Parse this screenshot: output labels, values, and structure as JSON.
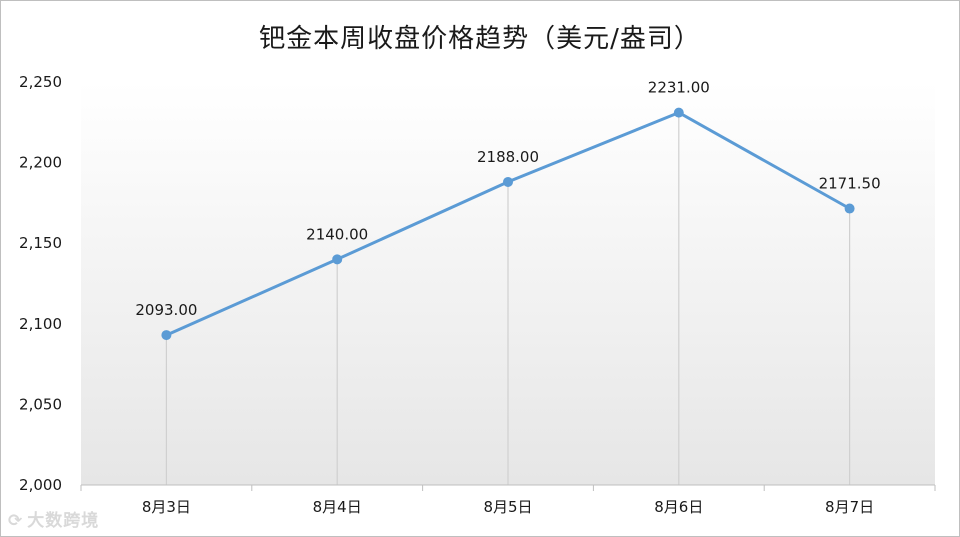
{
  "chart_data": {
    "type": "line",
    "title": "钯金本周收盘价格趋势（美元/盎司）",
    "categories": [
      "8月3日",
      "8月4日",
      "8月5日",
      "8月6日",
      "8月7日"
    ],
    "series": [
      {
        "values": [
          2093.0,
          2140.0,
          2188.0,
          2231.0,
          2171.5
        ],
        "color": "#5b9bd5"
      }
    ],
    "data_labels": [
      "2093.00",
      "2140.00",
      "2188.00",
      "2231.00",
      "2171.50"
    ],
    "ylim": [
      2000,
      2250
    ],
    "yticks": [
      2000,
      2050,
      2100,
      2150,
      2200,
      2250
    ],
    "ytick_labels": [
      "2,000",
      "2,050",
      "2,100",
      "2,150",
      "2,200",
      "2,250"
    ],
    "grid": false,
    "drop_lines": true,
    "xlabel": "",
    "ylabel": ""
  },
  "watermark": {
    "text": "大数跨境",
    "icon": "logo-icon"
  }
}
